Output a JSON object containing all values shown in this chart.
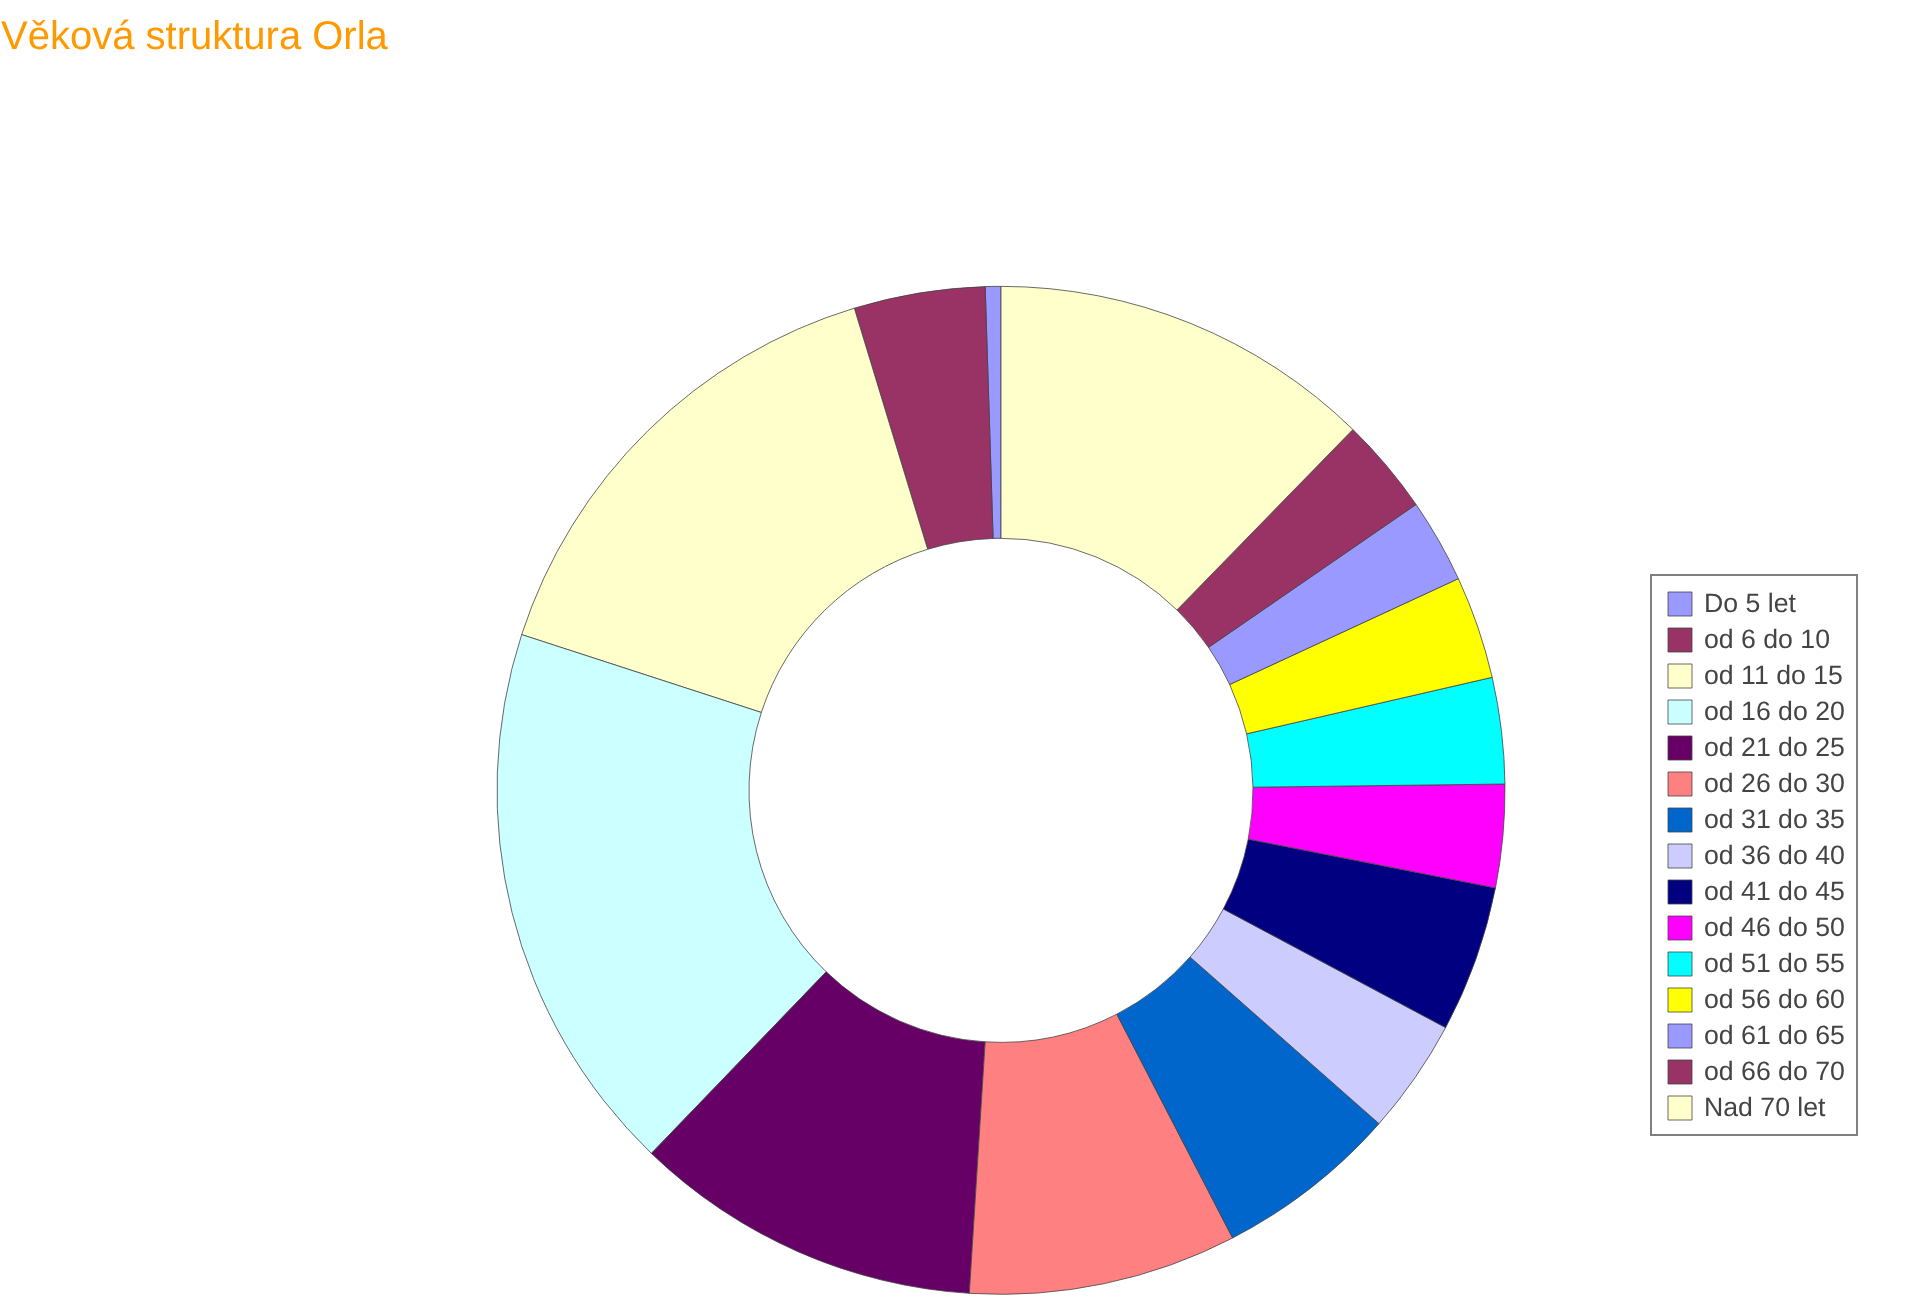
{
  "chart_data": {
    "type": "donut",
    "title": "Věková struktura Orla",
    "categories": [
      "Do 5 let",
      "od 6 do 10",
      "od 11 do 15",
      "od 16 do 20",
      "od 21 do 25",
      "od 26 do 30",
      "od 31 do 35",
      "od 36 do 40",
      "od 41 do 45",
      "od 46 do 50",
      "od 51 do 55",
      "od 56 do 60",
      "od 61 do 65",
      "od 66 do 70",
      "Nad 70 let"
    ],
    "values": [
      0.5,
      4.2,
      15.3,
      17.8,
      11.2,
      8.6,
      5.9,
      3.7,
      4.7,
      3.3,
      3.4,
      3.3,
      2.7,
      3.1,
      12.3
    ],
    "colors": [
      "#9999ff",
      "#993366",
      "#ffffcc",
      "#ccffff",
      "#660066",
      "#ff8080",
      "#0066cc",
      "#ccccff",
      "#000080",
      "#ff00ff",
      "#00ffff",
      "#ffff00",
      "#9999ff",
      "#993366",
      "#ffffcc"
    ],
    "legend": "right"
  }
}
